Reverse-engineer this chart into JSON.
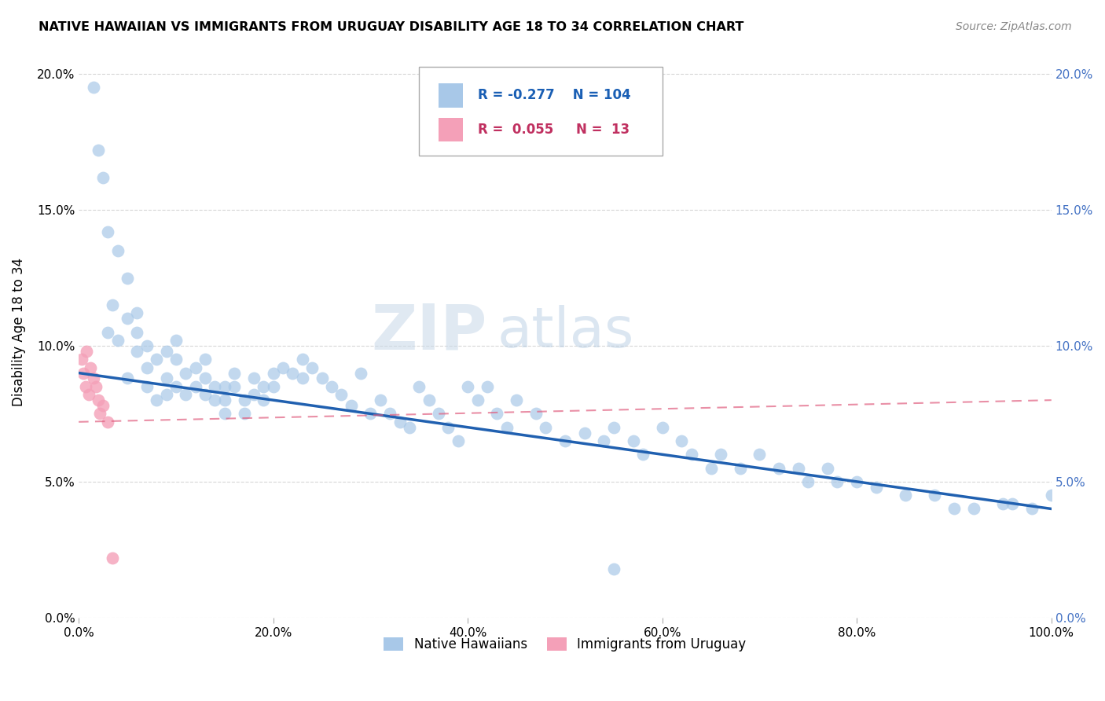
{
  "title": "NATIVE HAWAIIAN VS IMMIGRANTS FROM URUGUAY DISABILITY AGE 18 TO 34 CORRELATION CHART",
  "source": "Source: ZipAtlas.com",
  "ylabel": "Disability Age 18 to 34",
  "watermark_zip": "ZIP",
  "watermark_atlas": "atlas",
  "legend_label1": "Native Hawaiians",
  "legend_label2": "Immigrants from Uruguay",
  "R1": -0.277,
  "N1": 104,
  "R2": 0.055,
  "N2": 13,
  "color1": "#a8c8e8",
  "color2": "#f4a0b8",
  "line_color1": "#2060b0",
  "line_color2": "#e06080",
  "xlim": [
    0,
    100
  ],
  "ylim": [
    0,
    21
  ],
  "xticks": [
    0,
    20,
    40,
    60,
    80,
    100
  ],
  "yticks": [
    0,
    5,
    10,
    15,
    20
  ],
  "blue_line_x0": 0,
  "blue_line_y0": 9.0,
  "blue_line_x1": 100,
  "blue_line_y1": 4.0,
  "pink_line_x0": 0,
  "pink_line_y0": 7.2,
  "pink_line_x1": 100,
  "pink_line_y1": 8.0,
  "native_hawaiian_x": [
    1.5,
    2,
    2.5,
    3,
    3,
    3.5,
    4,
    4,
    5,
    5,
    5,
    6,
    6,
    6,
    7,
    7,
    7,
    8,
    8,
    9,
    9,
    9,
    10,
    10,
    10,
    11,
    11,
    12,
    12,
    13,
    13,
    13,
    14,
    14,
    15,
    15,
    15,
    16,
    16,
    17,
    17,
    18,
    18,
    19,
    19,
    20,
    20,
    21,
    22,
    23,
    23,
    24,
    25,
    26,
    27,
    28,
    29,
    30,
    31,
    32,
    33,
    34,
    35,
    36,
    37,
    38,
    39,
    40,
    41,
    42,
    43,
    44,
    45,
    47,
    48,
    50,
    52,
    54,
    55,
    57,
    58,
    60,
    62,
    63,
    65,
    66,
    68,
    70,
    72,
    74,
    75,
    77,
    78,
    80,
    82,
    85,
    88,
    90,
    92,
    95,
    96,
    98,
    100,
    55
  ],
  "native_hawaiian_y": [
    19.5,
    17.2,
    16.2,
    10.5,
    14.2,
    11.5,
    10.2,
    13.5,
    8.8,
    11.0,
    12.5,
    10.5,
    9.8,
    11.2,
    10.0,
    8.5,
    9.2,
    9.5,
    8.0,
    9.8,
    8.2,
    8.8,
    8.5,
    9.5,
    10.2,
    8.2,
    9.0,
    8.5,
    9.2,
    8.8,
    8.2,
    9.5,
    8.5,
    8.0,
    8.5,
    8.0,
    7.5,
    9.0,
    8.5,
    8.0,
    7.5,
    8.8,
    8.2,
    8.5,
    8.0,
    9.0,
    8.5,
    9.2,
    9.0,
    8.8,
    9.5,
    9.2,
    8.8,
    8.5,
    8.2,
    7.8,
    9.0,
    7.5,
    8.0,
    7.5,
    7.2,
    7.0,
    8.5,
    8.0,
    7.5,
    7.0,
    6.5,
    8.5,
    8.0,
    8.5,
    7.5,
    7.0,
    8.0,
    7.5,
    7.0,
    6.5,
    6.8,
    6.5,
    7.0,
    6.5,
    6.0,
    7.0,
    6.5,
    6.0,
    5.5,
    6.0,
    5.5,
    6.0,
    5.5,
    5.5,
    5.0,
    5.5,
    5.0,
    5.0,
    4.8,
    4.5,
    4.5,
    4.0,
    4.0,
    4.2,
    4.2,
    4.0,
    4.5,
    1.8
  ],
  "uruguay_x": [
    0.3,
    0.5,
    0.7,
    0.8,
    1.0,
    1.2,
    1.5,
    1.8,
    2.0,
    2.2,
    2.5,
    3.0,
    3.5
  ],
  "uruguay_y": [
    9.5,
    9.0,
    8.5,
    9.8,
    8.2,
    9.2,
    8.8,
    8.5,
    8.0,
    7.5,
    7.8,
    7.2,
    2.2
  ]
}
